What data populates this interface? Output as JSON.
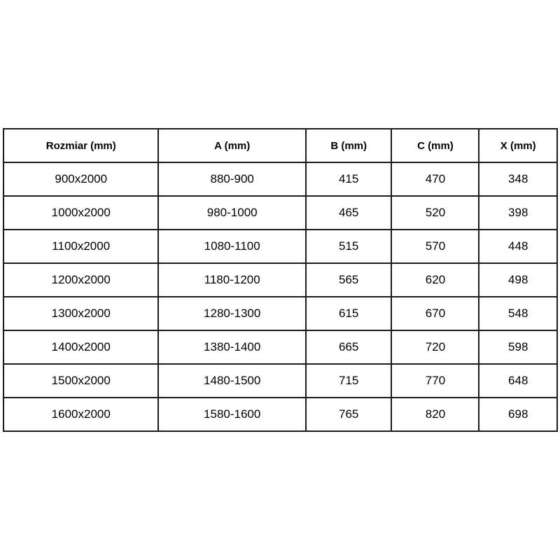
{
  "page": {
    "background_color": "#ffffff",
    "text_color": "#000000",
    "table_border_color": "#1b1b1b"
  },
  "table": {
    "headers": [
      "Rozmiar (mm)",
      "A (mm)",
      "B (mm)",
      "C (mm)",
      "X (mm)"
    ],
    "rows": [
      [
        "900x2000",
        "880-900",
        "415",
        "470",
        "348"
      ],
      [
        "1000x2000",
        "980-1000",
        "465",
        "520",
        "398"
      ],
      [
        "1100x2000",
        "1080-1100",
        "515",
        "570",
        "448"
      ],
      [
        "1200x2000",
        "1180-1200",
        "565",
        "620",
        "498"
      ],
      [
        "1300x2000",
        "1280-1300",
        "615",
        "670",
        "548"
      ],
      [
        "1400x2000",
        "1380-1400",
        "665",
        "720",
        "598"
      ],
      [
        "1500x2000",
        "1480-1500",
        "715",
        "770",
        "648"
      ],
      [
        "1600x2000",
        "1580-1600",
        "765",
        "820",
        "698"
      ]
    ]
  }
}
